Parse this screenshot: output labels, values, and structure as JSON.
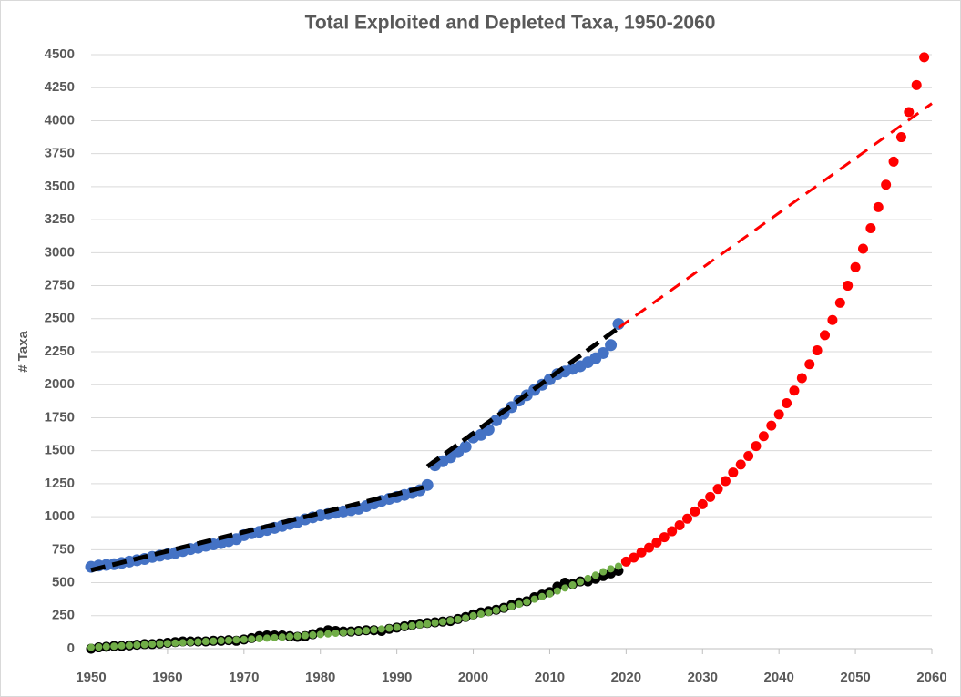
{
  "chart_data": {
    "type": "scatter",
    "title": "Total Exploited and Depleted Taxa, 1950-2060",
    "y_label": "# Taxa",
    "xlim": [
      1950,
      2060
    ],
    "xticks": [
      1950,
      1960,
      1970,
      1980,
      1990,
      2000,
      2010,
      2020,
      2030,
      2040,
      2050,
      2060
    ],
    "ylim": [
      0,
      4500
    ],
    "yticks": [
      0,
      250,
      500,
      750,
      1000,
      1250,
      1500,
      1750,
      2000,
      2250,
      2500,
      2750,
      3000,
      3250,
      3500,
      3750,
      4000,
      4250,
      4500
    ],
    "grid": true,
    "series": [
      {
        "type": "scatter",
        "color": "#4472c4",
        "x": [
          1950,
          1951,
          1952,
          1953,
          1954,
          1955,
          1956,
          1957,
          1958,
          1959,
          1960,
          1961,
          1962,
          1963,
          1964,
          1965,
          1966,
          1967,
          1968,
          1969,
          1970,
          1971,
          1972,
          1973,
          1974,
          1975,
          1976,
          1977,
          1978,
          1979,
          1980,
          1981,
          1982,
          1983,
          1984,
          1985,
          1986,
          1987,
          1988,
          1989,
          1990,
          1991,
          1992,
          1993,
          1994,
          1995,
          1996,
          1997,
          1998,
          1999,
          2000,
          2001,
          2002,
          2003,
          2004,
          2005,
          2006,
          2007,
          2008,
          2009,
          2010,
          2011,
          2012,
          2013,
          2014,
          2015,
          2016,
          2017,
          2018,
          2019
        ],
        "values": [
          620,
          630,
          635,
          640,
          650,
          660,
          670,
          680,
          695,
          705,
          715,
          725,
          740,
          755,
          765,
          780,
          790,
          800,
          815,
          830,
          860,
          875,
          885,
          900,
          915,
          930,
          945,
          960,
          980,
          995,
          1010,
          1020,
          1030,
          1040,
          1050,
          1060,
          1080,
          1100,
          1120,
          1135,
          1150,
          1165,
          1180,
          1200,
          1240,
          1390,
          1420,
          1450,
          1490,
          1530,
          1600,
          1620,
          1660,
          1730,
          1780,
          1830,
          1880,
          1920,
          1960,
          2000,
          2040,
          2080,
          2100,
          2120,
          2140,
          2170,
          2200,
          2240,
          2300,
          2460
        ]
      },
      {
        "type": "line",
        "color": "#000000",
        "x": [
          1950,
          1994
        ],
        "values": [
          595,
          1230
        ]
      },
      {
        "type": "line",
        "color": "#000000",
        "x": [
          1994,
          2019
        ],
        "values": [
          1380,
          2430
        ]
      },
      {
        "type": "line",
        "color": "#ff0000",
        "x": [
          2019,
          2060
        ],
        "values": [
          2430,
          4130
        ]
      },
      {
        "type": "scatter",
        "color": "#000000",
        "x": [
          1950,
          1951,
          1952,
          1953,
          1954,
          1955,
          1956,
          1957,
          1958,
          1959,
          1960,
          1961,
          1962,
          1963,
          1964,
          1965,
          1966,
          1967,
          1968,
          1969,
          1970,
          1971,
          1972,
          1973,
          1974,
          1975,
          1976,
          1977,
          1978,
          1979,
          1980,
          1981,
          1982,
          1983,
          1984,
          1985,
          1986,
          1987,
          1988,
          1989,
          1990,
          1991,
          1992,
          1993,
          1994,
          1995,
          1996,
          1997,
          1998,
          1999,
          2000,
          2001,
          2002,
          2003,
          2004,
          2005,
          2006,
          2007,
          2008,
          2009,
          2010,
          2011,
          2012,
          2013,
          2014,
          2015,
          2016,
          2017,
          2018,
          2019
        ],
        "values": [
          0,
          10,
          15,
          20,
          20,
          25,
          30,
          35,
          35,
          40,
          45,
          50,
          55,
          55,
          55,
          55,
          60,
          60,
          65,
          60,
          70,
          80,
          95,
          100,
          100,
          100,
          95,
          90,
          95,
          110,
          125,
          140,
          135,
          130,
          130,
          135,
          140,
          140,
          135,
          150,
          160,
          170,
          180,
          190,
          195,
          200,
          205,
          210,
          225,
          240,
          260,
          275,
          285,
          295,
          310,
          330,
          350,
          360,
          390,
          410,
          430,
          470,
          500,
          490,
          510,
          510,
          530,
          550,
          570,
          590
        ]
      },
      {
        "type": "scatter",
        "color": "#70ad47",
        "x": [
          1950,
          1951,
          1952,
          1953,
          1954,
          1955,
          1956,
          1957,
          1958,
          1959,
          1960,
          1961,
          1962,
          1963,
          1964,
          1965,
          1966,
          1967,
          1968,
          1969,
          1970,
          1971,
          1972,
          1973,
          1974,
          1975,
          1976,
          1977,
          1978,
          1979,
          1980,
          1981,
          1982,
          1983,
          1984,
          1985,
          1986,
          1987,
          1988,
          1989,
          1990,
          1991,
          1992,
          1993,
          1994,
          1995,
          1996,
          1997,
          1998,
          1999,
          2000,
          2001,
          2002,
          2003,
          2004,
          2005,
          2006,
          2007,
          2008,
          2009,
          2010,
          2011,
          2012,
          2013,
          2014,
          2015,
          2016,
          2017,
          2018,
          2019
        ],
        "values": [
          10,
          13,
          16,
          19,
          22,
          25,
          28,
          31,
          34,
          37,
          40,
          43,
          46,
          49,
          52,
          55,
          58,
          61,
          64,
          67,
          70,
          73,
          76,
          80,
          84,
          88,
          92,
          96,
          100,
          104,
          108,
          112,
          117,
          122,
          127,
          132,
          137,
          143,
          149,
          155,
          161,
          167,
          174,
          181,
          188,
          196,
          204,
          213,
          222,
          232,
          250,
          262,
          275,
          290,
          305,
          320,
          337,
          355,
          375,
          395,
          415,
          437,
          460,
          483,
          507,
          532,
          557,
          583,
          605,
          625
        ]
      },
      {
        "type": "scatter",
        "color": "#ff0000",
        "x": [
          2020,
          2021,
          2022,
          2023,
          2024,
          2025,
          2026,
          2027,
          2028,
          2029,
          2030,
          2031,
          2032,
          2033,
          2034,
          2035,
          2036,
          2037,
          2038,
          2039,
          2040,
          2041,
          2042,
          2043,
          2044,
          2045,
          2046,
          2047,
          2048,
          2049,
          2050,
          2051,
          2052,
          2053,
          2054,
          2055,
          2056,
          2057,
          2058,
          2059
        ],
        "values": [
          660,
          690,
          730,
          765,
          805,
          845,
          890,
          935,
          985,
          1040,
          1095,
          1150,
          1210,
          1270,
          1335,
          1395,
          1460,
          1535,
          1610,
          1690,
          1775,
          1860,
          1955,
          2050,
          2155,
          2260,
          2375,
          2490,
          2620,
          2750,
          2890,
          3030,
          3185,
          3345,
          3515,
          3690,
          3875,
          4065,
          4270,
          4480
        ]
      }
    ]
  }
}
